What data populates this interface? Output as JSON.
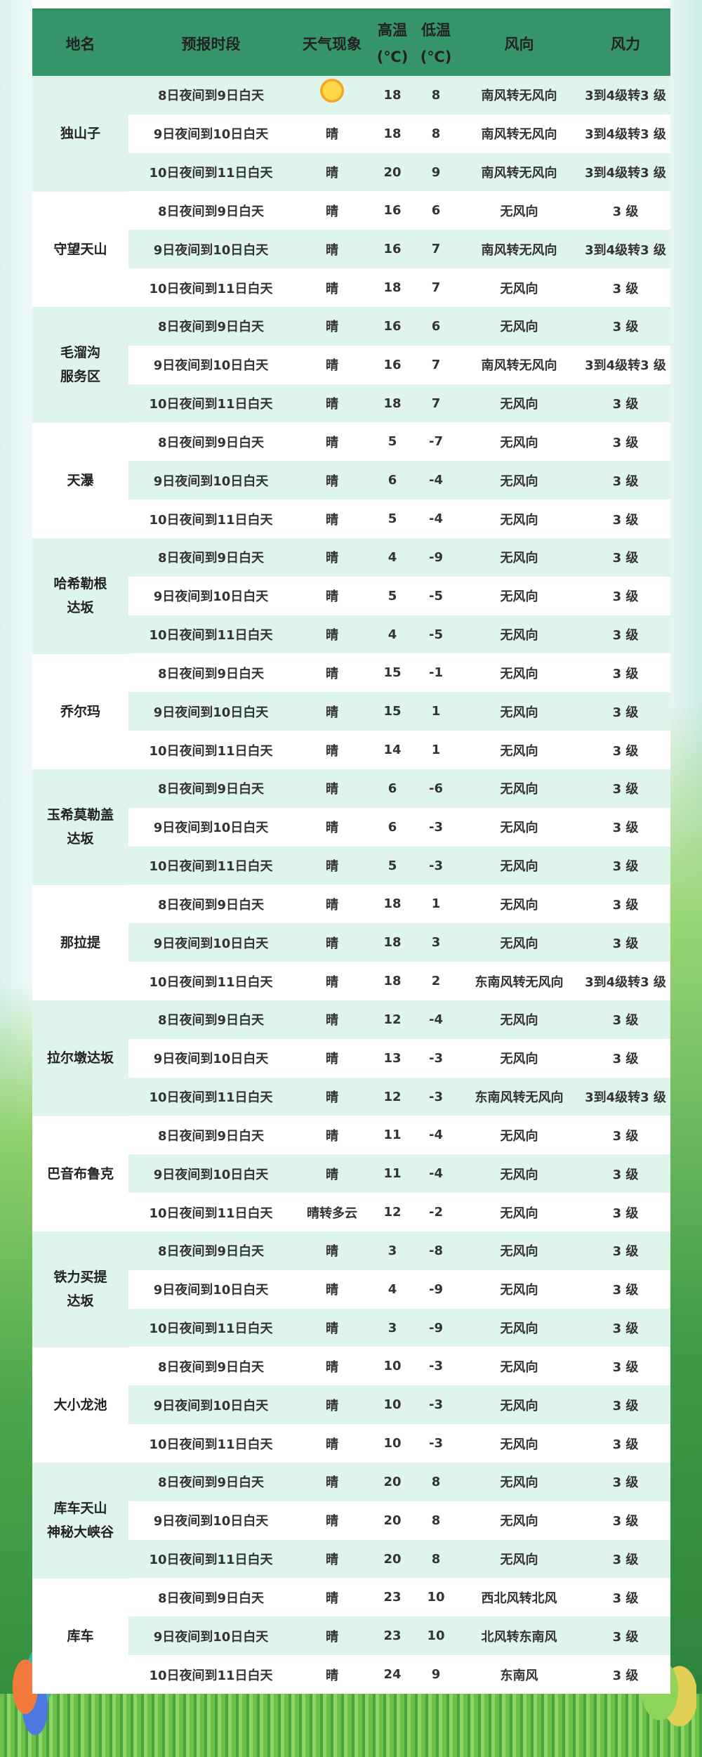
{
  "header": {
    "name": "地名",
    "period": "预报时段",
    "weather": "天气现象",
    "high": "高温",
    "high_unit": "(℃)",
    "low": "低温",
    "low_unit": "(℃)",
    "wind_dir": "风向",
    "wind_force": "风力"
  },
  "colors": {
    "header": "#36966a",
    "stripe": "#dff5ec"
  },
  "icons": {
    "weather_header_icon": "sun-icon"
  },
  "groups": [
    {
      "name": "独山子",
      "rows": [
        [
          "8日夜间到9日白天",
          "晴",
          "18",
          "8",
          "南风转无风向",
          "3到4级转3 级"
        ],
        [
          "9日夜间到10日白天",
          "晴",
          "18",
          "8",
          "南风转无风向",
          "3到4级转3 级"
        ],
        [
          "10日夜间到11日白天",
          "晴",
          "20",
          "9",
          "南风转无风向",
          "3到4级转3 级"
        ]
      ]
    },
    {
      "name": "守望天山",
      "rows": [
        [
          "8日夜间到9日白天",
          "晴",
          "16",
          "6",
          "无风向",
          "3 级"
        ],
        [
          "9日夜间到10日白天",
          "晴",
          "16",
          "7",
          "南风转无风向",
          "3到4级转3 级"
        ],
        [
          "10日夜间到11日白天",
          "晴",
          "18",
          "7",
          "无风向",
          "3 级"
        ]
      ]
    },
    {
      "name": "毛溜沟\n服务区",
      "rows": [
        [
          "8日夜间到9日白天",
          "晴",
          "16",
          "6",
          "无风向",
          "3 级"
        ],
        [
          "9日夜间到10日白天",
          "晴",
          "16",
          "7",
          "南风转无风向",
          "3到4级转3 级"
        ],
        [
          "10日夜间到11日白天",
          "晴",
          "18",
          "7",
          "无风向",
          "3 级"
        ]
      ]
    },
    {
      "name": "天瀑",
      "rows": [
        [
          "8日夜间到9日白天",
          "晴",
          "5",
          "-7",
          "无风向",
          "3 级"
        ],
        [
          "9日夜间到10日白天",
          "晴",
          "6",
          "-4",
          "无风向",
          "3 级"
        ],
        [
          "10日夜间到11日白天",
          "晴",
          "5",
          "-4",
          "无风向",
          "3 级"
        ]
      ]
    },
    {
      "name": "哈希勒根\n达坂",
      "rows": [
        [
          "8日夜间到9日白天",
          "晴",
          "4",
          "-9",
          "无风向",
          "3 级"
        ],
        [
          "9日夜间到10日白天",
          "晴",
          "5",
          "-5",
          "无风向",
          "3 级"
        ],
        [
          "10日夜间到11日白天",
          "晴",
          "4",
          "-5",
          "无风向",
          "3 级"
        ]
      ]
    },
    {
      "name": "乔尔玛",
      "rows": [
        [
          "8日夜间到9日白天",
          "晴",
          "15",
          "-1",
          "无风向",
          "3 级"
        ],
        [
          "9日夜间到10日白天",
          "晴",
          "15",
          "1",
          "无风向",
          "3 级"
        ],
        [
          "10日夜间到11日白天",
          "晴",
          "14",
          "1",
          "无风向",
          "3 级"
        ]
      ]
    },
    {
      "name": "玉希莫勒盖\n达坂",
      "rows": [
        [
          "8日夜间到9日白天",
          "晴",
          "6",
          "-6",
          "无风向",
          "3 级"
        ],
        [
          "9日夜间到10日白天",
          "晴",
          "6",
          "-3",
          "无风向",
          "3 级"
        ],
        [
          "10日夜间到11日白天",
          "晴",
          "5",
          "-3",
          "无风向",
          "3 级"
        ]
      ]
    },
    {
      "name": "那拉提",
      "rows": [
        [
          "8日夜间到9日白天",
          "晴",
          "18",
          "1",
          "无风向",
          "3 级"
        ],
        [
          "9日夜间到10日白天",
          "晴",
          "18",
          "3",
          "无风向",
          "3 级"
        ],
        [
          "10日夜间到11日白天",
          "晴",
          "18",
          "2",
          "东南风转无风向",
          "3到4级转3 级"
        ]
      ]
    },
    {
      "name": "拉尔墩达坂",
      "rows": [
        [
          "8日夜间到9日白天",
          "晴",
          "12",
          "-4",
          "无风向",
          "3 级"
        ],
        [
          "9日夜间到10日白天",
          "晴",
          "13",
          "-3",
          "无风向",
          "3 级"
        ],
        [
          "10日夜间到11日白天",
          "晴",
          "12",
          "-3",
          "东南风转无风向",
          "3到4级转3 级"
        ]
      ]
    },
    {
      "name": "巴音布鲁克",
      "rows": [
        [
          "8日夜间到9日白天",
          "晴",
          "11",
          "-4",
          "无风向",
          "3 级"
        ],
        [
          "9日夜间到10日白天",
          "晴",
          "11",
          "-4",
          "无风向",
          "3 级"
        ],
        [
          "10日夜间到11日白天",
          "晴转多云",
          "12",
          "-2",
          "无风向",
          "3 级"
        ]
      ]
    },
    {
      "name": "铁力买提\n达坂",
      "rows": [
        [
          "8日夜间到9日白天",
          "晴",
          "3",
          "-8",
          "无风向",
          "3 级"
        ],
        [
          "9日夜间到10日白天",
          "晴",
          "4",
          "-9",
          "无风向",
          "3 级"
        ],
        [
          "10日夜间到11日白天",
          "晴",
          "3",
          "-9",
          "无风向",
          "3 级"
        ]
      ]
    },
    {
      "name": "大小龙池",
      "rows": [
        [
          "8日夜间到9日白天",
          "晴",
          "10",
          "-3",
          "无风向",
          "3 级"
        ],
        [
          "9日夜间到10日白天",
          "晴",
          "10",
          "-3",
          "无风向",
          "3 级"
        ],
        [
          "10日夜间到11日白天",
          "晴",
          "10",
          "-3",
          "无风向",
          "3 级"
        ]
      ]
    },
    {
      "name": "库车天山\n神秘大峡谷",
      "rows": [
        [
          "8日夜间到9日白天",
          "晴",
          "20",
          "8",
          "无风向",
          "3 级"
        ],
        [
          "9日夜间到10日白天",
          "晴",
          "20",
          "8",
          "无风向",
          "3 级"
        ],
        [
          "10日夜间到11日白天",
          "晴",
          "20",
          "8",
          "无风向",
          "3 级"
        ]
      ]
    },
    {
      "name": "库车",
      "rows": [
        [
          "8日夜间到9日白天",
          "晴",
          "23",
          "10",
          "西北风转北风",
          "3 级"
        ],
        [
          "9日夜间到10日白天",
          "晴",
          "23",
          "10",
          "北风转东南风",
          "3 级"
        ],
        [
          "10日夜间到11日白天",
          "晴",
          "24",
          "9",
          "东南风",
          "3 级"
        ]
      ]
    }
  ]
}
